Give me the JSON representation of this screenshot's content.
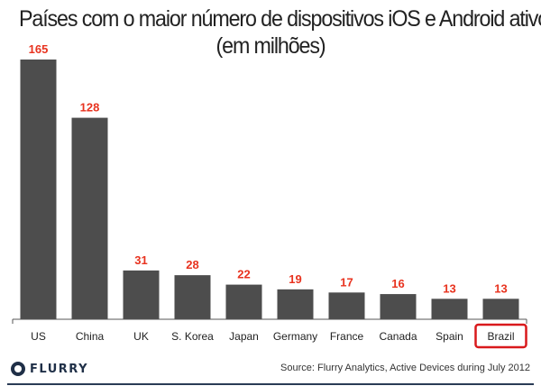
{
  "title_line1": "Países com o maior número de dispositivos iOS e Android ativos",
  "title_line2": "(em milhões)",
  "brand": "FLURRY",
  "source": "Source: Flurry Analytics, Active Devices during July 2012",
  "colors": {
    "bar": "#4d4d4d",
    "value_label": "#e8331f",
    "highlight_box": "#d9191c",
    "axis": "#555555"
  },
  "chart_data": {
    "type": "bar",
    "categories": [
      "US",
      "China",
      "UK",
      "S. Korea",
      "Japan",
      "Germany",
      "France",
      "Canada",
      "Spain",
      "Brazil"
    ],
    "values": [
      165,
      128,
      31,
      28,
      22,
      19,
      17,
      16,
      13,
      13
    ],
    "title": "Países com o maior número de dispositivos iOS e Android ativos",
    "subtitle": "(em milhões)",
    "highlighted_category": "Brazil",
    "ylim": [
      0,
      165
    ],
    "grid": false
  }
}
